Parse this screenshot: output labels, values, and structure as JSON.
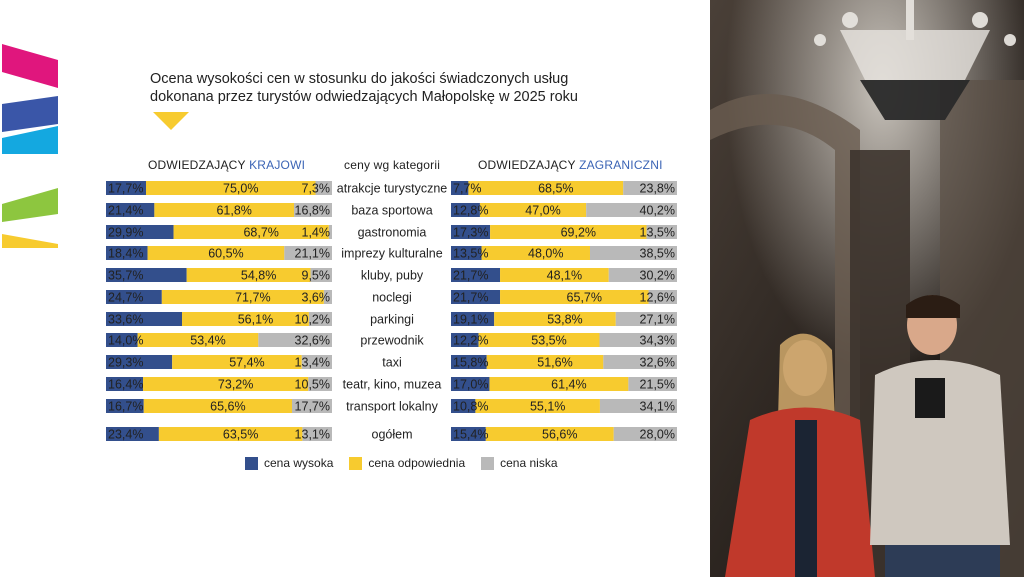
{
  "title": {
    "line1": "Ocena wysokości cen w stosunku do jakości świadczonych usług",
    "line2": "dokonana przez turystów odwiedzających Małopolskę w 2025 roku"
  },
  "headers": {
    "domestic_prefix": "ODWIEDZAJĄCY",
    "domestic_highlight": "KRAJOWI",
    "category": "ceny wg kategorii",
    "foreign_prefix": "ODWIEDZAJĄCY",
    "foreign_highlight": "ZAGRANICZNI"
  },
  "legend": {
    "high": "cena wysoka",
    "adequate": "cena odpowiednia",
    "low": "cena niska"
  },
  "colors": {
    "high": "#334f8c",
    "adequate": "#f7cb2f",
    "low": "#b9b9b9",
    "accent_blue": "#3b64b5",
    "brand_magenta": "#e0167d",
    "brand_cyan": "#14a8e0",
    "brand_navy": "#3a56a8",
    "brand_green": "#8dc63f",
    "brand_yellow": "#f7cb2f"
  },
  "chart_data": [
    {
      "type": "bar",
      "stacked": true,
      "orientation": "horizontal",
      "title": "ODWIEDZAJĄCY KRAJOWI",
      "categories": [
        "atrakcje turystyczne",
        "baza sportowa",
        "gastronomia",
        "imprezy kulturalne",
        "kluby, puby",
        "noclegi",
        "parkingi",
        "przewodnik",
        "taxi",
        "teatr, kino, muzea",
        "transport lokalny",
        "ogółem"
      ],
      "series": [
        {
          "name": "cena wysoka",
          "values": [
            17.7,
            21.4,
            29.9,
            18.4,
            35.7,
            24.7,
            33.6,
            14.0,
            29.3,
            16.4,
            16.7,
            23.4
          ],
          "labels": [
            "17,7%",
            "21,4%",
            "29,9%",
            "18,4%",
            "35,7%",
            "24,7%",
            "33,6%",
            "14,0%",
            "29,3%",
            "16,4%",
            "16,7%",
            "23,4%"
          ]
        },
        {
          "name": "cena odpowiednia",
          "values": [
            75.0,
            61.8,
            68.7,
            60.5,
            54.8,
            71.7,
            56.1,
            53.4,
            57.4,
            73.2,
            65.6,
            63.5
          ],
          "labels": [
            "75,0%",
            "61,8%",
            "68,7%",
            "60,5%",
            "54,8%",
            "71,7%",
            "56,1%",
            "53,4%",
            "57,4%",
            "73,2%",
            "65,6%",
            "63,5%"
          ]
        },
        {
          "name": "cena niska",
          "values": [
            7.3,
            16.8,
            1.4,
            21.1,
            9.5,
            3.6,
            10.2,
            32.6,
            13.4,
            10.5,
            17.7,
            13.1
          ],
          "labels": [
            "7,3%",
            "16,8%",
            "1,4%",
            "21,1%",
            "9,5%",
            "3,6%",
            "10,2%",
            "32,6%",
            "13,4%",
            "10,5%",
            "17,7%",
            "13,1%"
          ]
        }
      ],
      "xlim": [
        0,
        100
      ]
    },
    {
      "type": "bar",
      "stacked": true,
      "orientation": "horizontal",
      "title": "ODWIEDZAJĄCY ZAGRANICZNI",
      "categories": [
        "atrakcje turystyczne",
        "baza sportowa",
        "gastronomia",
        "imprezy kulturalne",
        "kluby, puby",
        "noclegi",
        "parkingi",
        "przewodnik",
        "taxi",
        "teatr, kino, muzea",
        "transport lokalny",
        "ogółem"
      ],
      "series": [
        {
          "name": "cena wysoka",
          "values": [
            7.7,
            12.8,
            17.3,
            13.5,
            21.7,
            21.7,
            19.1,
            12.2,
            15.8,
            17.0,
            10.8,
            15.4
          ],
          "labels": [
            "7,7%",
            "12,8%",
            "17,3%",
            "13,5%",
            "21,7%",
            "21,7%",
            "19,1%",
            "12,2%",
            "15,8%",
            "17,0%",
            "10,8%",
            "15,4%"
          ]
        },
        {
          "name": "cena odpowiednia",
          "values": [
            68.5,
            47.0,
            69.2,
            48.0,
            48.1,
            65.7,
            53.8,
            53.5,
            51.6,
            61.4,
            55.1,
            56.6
          ],
          "labels": [
            "68,5%",
            "47,0%",
            "69,2%",
            "48,0%",
            "48,1%",
            "65,7%",
            "53,8%",
            "53,5%",
            "51,6%",
            "61,4%",
            "55,1%",
            "56,6%"
          ]
        },
        {
          "name": "cena niska",
          "values": [
            23.8,
            40.2,
            13.5,
            38.5,
            30.2,
            12.6,
            27.1,
            34.3,
            32.6,
            21.5,
            34.1,
            28.0
          ],
          "labels": [
            "23,8%",
            "40,2%",
            "13,5%",
            "38,5%",
            "30,2%",
            "12,6%",
            "27,1%",
            "34,3%",
            "32,6%",
            "21,5%",
            "34,1%",
            "28,0%"
          ]
        }
      ],
      "xlim": [
        0,
        100
      ]
    }
  ]
}
